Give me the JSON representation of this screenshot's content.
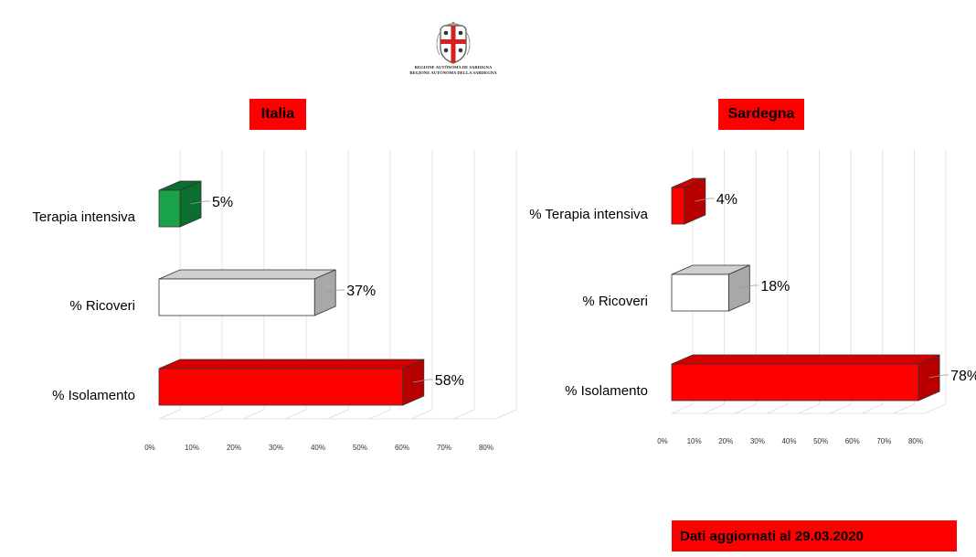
{
  "logo": {
    "name": "regione-sardegna-crest",
    "line1": "REGIONE AUTÒNOMA DE SARDIGNA",
    "line2": "REGIONE AUTONOMA DELLA SARDEGNA"
  },
  "footer": {
    "text": "Dati aggiornati al 29.03.2020"
  },
  "colors": {
    "red": "#ff0000",
    "red_dark": "#b80000",
    "red_top": "#d40000",
    "green": "#1aa34a",
    "green_dark": "#0b6e2e",
    "white": "#ffffff",
    "gray_top": "#cfcfcf",
    "gray_side": "#a8a8a8"
  },
  "chart_data": [
    {
      "type": "bar",
      "orientation": "horizontal",
      "style": "3d",
      "title": "Italia",
      "categories": [
        "Terapia intensiva",
        "% Ricoveri",
        "% Isolamento"
      ],
      "values": [
        5,
        37,
        58
      ],
      "value_labels": [
        "5%",
        "37%",
        "58%"
      ],
      "bar_colors": [
        "green",
        "white",
        "red"
      ],
      "ticks": [
        "0%",
        "10%",
        "20%",
        "30%",
        "40%",
        "50%",
        "60%",
        "70%",
        "80%"
      ],
      "xlim": [
        0,
        80
      ],
      "grid": true,
      "legend": "none"
    },
    {
      "type": "bar",
      "orientation": "horizontal",
      "style": "3d",
      "title": "Sardegna",
      "categories": [
        "% Terapia intensiva",
        "% Ricoveri",
        "% Isolamento"
      ],
      "values": [
        4,
        18,
        78
      ],
      "value_labels": [
        "4%",
        "18%",
        "78%"
      ],
      "bar_colors": [
        "red",
        "white",
        "red"
      ],
      "ticks": [
        "0%",
        "10%",
        "20%",
        "30%",
        "40%",
        "50%",
        "60%",
        "70%",
        "80%"
      ],
      "xlim": [
        0,
        80
      ],
      "grid": true,
      "legend": "none"
    }
  ]
}
